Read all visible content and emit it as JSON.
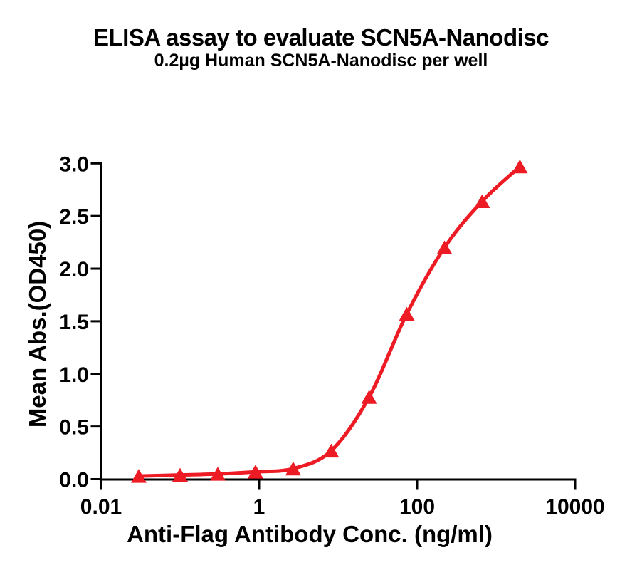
{
  "page": {
    "background": "#ffffff",
    "text_color": "#000000"
  },
  "header": {
    "title": "ELISA assay to evaluate SCN5A-Nanodisc",
    "subtitle": "0.2µg Human SCN5A-Nanodisc per well"
  },
  "chart_data": {
    "type": "scatter",
    "curve_style": "4PL-sigmoid-fit-line",
    "marker": "triangle-up",
    "series_color": "#EC1B24",
    "axis_color": "#000000",
    "grid": false,
    "legend": "none",
    "xlabel": "Anti-Flag Antibody Conc. (ng/ml)",
    "ylabel": "Mean Abs.(OD450)",
    "xscale": "log10",
    "xlim": [
      0.01,
      10000
    ],
    "ylim": [
      0.0,
      3.0
    ],
    "xticks": [
      0.01,
      1,
      100,
      10000
    ],
    "xtick_labels": [
      "0.01",
      "1",
      "100",
      "10000"
    ],
    "yticks": [
      0.0,
      0.5,
      1.0,
      1.5,
      2.0,
      2.5,
      3.0
    ],
    "ytick_labels": [
      "0.0",
      "0.5",
      "1.0",
      "1.5",
      "2.0",
      "2.5",
      "3.0"
    ],
    "x": [
      0.03,
      0.1,
      0.3,
      0.9,
      2.7,
      8.2,
      24.7,
      74.1,
      222.2,
      666.7,
      2000
    ],
    "y": [
      0.03,
      0.04,
      0.05,
      0.07,
      0.1,
      0.27,
      0.78,
      1.57,
      2.2,
      2.64,
      2.97
    ]
  }
}
